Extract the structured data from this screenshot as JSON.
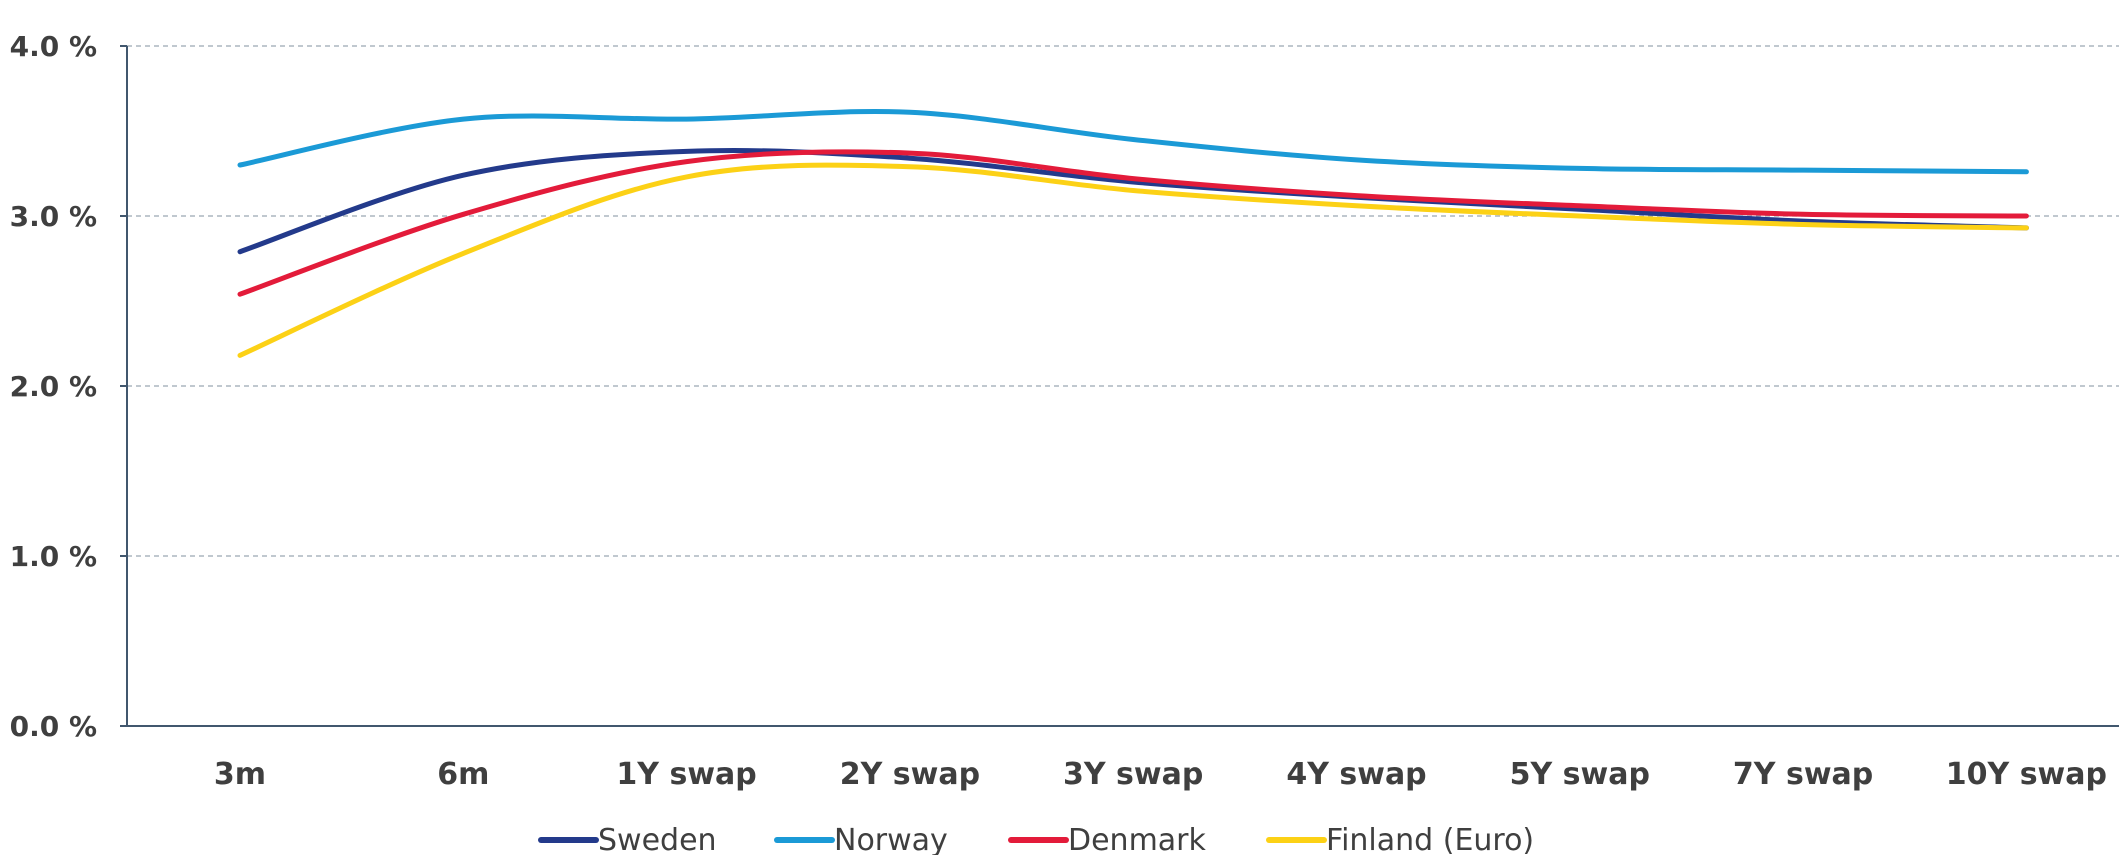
{
  "chart_data": {
    "type": "line",
    "title": "",
    "xlabel": "",
    "ylabel": "",
    "categories": [
      "3m",
      "6m",
      "1Y swap",
      "2Y swap",
      "3Y swap",
      "4Y swap",
      "5Y swap",
      "7Y swap",
      "10Y swap"
    ],
    "ylim": [
      0,
      4
    ],
    "yticks": [
      {
        "value": 0,
        "label": "0.0 %"
      },
      {
        "value": 1,
        "label": "1.0 %"
      },
      {
        "value": 2,
        "label": "2.0 %"
      },
      {
        "value": 3,
        "label": "3.0 %"
      },
      {
        "value": 4,
        "label": "4.0 %"
      }
    ],
    "grid": true,
    "legend_position": "bottom",
    "series": [
      {
        "name": "Sweden",
        "color": "#233a8b",
        "values": [
          2.79,
          3.24,
          3.38,
          3.34,
          3.2,
          3.11,
          3.04,
          2.97,
          2.93
        ]
      },
      {
        "name": "Norway",
        "color": "#1b9ad6",
        "values": [
          3.3,
          3.57,
          3.57,
          3.61,
          3.45,
          3.33,
          3.28,
          3.27,
          3.26
        ]
      },
      {
        "name": "Denmark",
        "color": "#e31b3a",
        "values": [
          2.54,
          3.01,
          3.32,
          3.37,
          3.22,
          3.12,
          3.06,
          3.01,
          3.0
        ]
      },
      {
        "name": "Finland (Euro)",
        "color": "#fcd116",
        "values": [
          2.18,
          2.78,
          3.23,
          3.29,
          3.15,
          3.06,
          3.0,
          2.95,
          2.93
        ]
      }
    ]
  }
}
